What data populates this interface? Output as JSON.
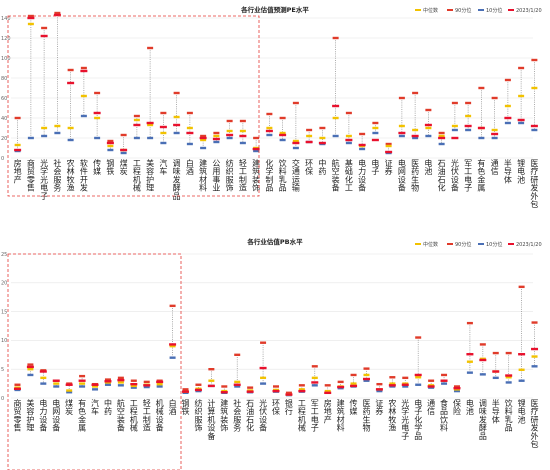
{
  "legend": {
    "median": "中位数",
    "p90": "90分位",
    "p10": "10分位",
    "current": "2023/1/20"
  },
  "colors": {
    "median": "#f2c200",
    "p90": "#e03b2a",
    "p10": "#4a6fb5",
    "current": "#e8112d",
    "range": "#8a8a8a",
    "highlight_box": "#e53935"
  },
  "chart_data": [
    {
      "type": "range",
      "title": "各行业估值预测PE水平",
      "ylim": [
        0,
        140
      ],
      "yticks": [
        0,
        20,
        40,
        60,
        80,
        100,
        120,
        140
      ],
      "grid": true,
      "legend_position": "top-right",
      "categories": [
        "房地产",
        "商贸零售",
        "光学光电子",
        "社会服务",
        "农林牧渔",
        "软件开发",
        "传媒",
        "钢铁",
        "煤炭",
        "工程机械",
        "美容护理",
        "汽车",
        "调味发酵品",
        "白酒",
        "建筑材料",
        "公用事业",
        "纺织服饰",
        "轻工制造",
        "建筑装饰",
        "化学制品",
        "饮料乳品",
        "交通运输",
        "环保",
        "中药",
        "航空装备",
        "基础化工",
        "电力设备",
        "电子",
        "证券",
        "电网设备",
        "医药生物",
        "电池",
        "石油石化",
        "光伏设备",
        "军工电子",
        "有色金属",
        "通信",
        "半导体",
        "锂电池",
        "医疗研发外包"
      ],
      "series": [
        {
          "name": "中位数",
          "values": [
            13,
            134,
            30,
            32,
            30,
            62,
            40,
            12,
            8,
            38,
            33,
            25,
            41,
            30,
            18,
            22,
            27,
            27,
            10,
            30,
            25,
            17,
            22,
            20,
            40,
            22,
            12,
            30,
            12,
            32,
            28,
            30,
            22,
            32,
            42,
            30,
            28,
            52,
            62,
            70
          ]
        },
        {
          "name": "90分位",
          "values": [
            40,
            142,
            130,
            145,
            88,
            90,
            65,
            17,
            23,
            42,
            110,
            45,
            65,
            45,
            22,
            25,
            37,
            37,
            20,
            44,
            40,
            55,
            28,
            30,
            120,
            45,
            24,
            35,
            14,
            60,
            65,
            48,
            25,
            55,
            55,
            70,
            60,
            78,
            90,
            98
          ]
        },
        {
          "name": "10分位",
          "values": [
            7,
            20,
            22,
            25,
            18,
            42,
            20,
            8,
            5,
            20,
            20,
            15,
            25,
            14,
            10,
            16,
            20,
            15,
            7,
            23,
            18,
            10,
            16,
            14,
            22,
            15,
            9,
            25,
            5,
            22,
            20,
            22,
            14,
            28,
            28,
            20,
            20,
            35,
            35,
            28
          ]
        },
        {
          "name": "2023/1/20",
          "values": [
            8,
            140,
            122,
            143,
            75,
            87,
            45,
            15,
            8,
            33,
            35,
            31,
            33,
            25,
            20,
            19,
            23,
            22,
            9,
            27,
            23,
            15,
            16,
            15,
            52,
            18,
            13,
            18,
            6,
            25,
            22,
            33,
            20,
            20,
            32,
            30,
            24,
            40,
            38,
            32
          ]
        }
      ]
    },
    {
      "type": "range",
      "title": "各行业估值PB水平",
      "ylim": [
        0,
        25
      ],
      "yticks": [
        0,
        5,
        10,
        15,
        20,
        25
      ],
      "grid": true,
      "legend_position": "top-right",
      "categories": [
        "商贸零售",
        "美容护理",
        "电力设备",
        "电网设备",
        "煤炭",
        "有色金属",
        "汽车",
        "中药",
        "航空装备",
        "工程机械",
        "轻工制造",
        "机械设备",
        "白酒",
        "钢铁",
        "纺织服饰",
        "计算机设备",
        "建筑装饰",
        "社会服务",
        "石油石化",
        "光伏设备",
        "环保",
        "银行",
        "工程机械",
        "军工电子",
        "房地产",
        "建筑材料",
        "传媒",
        "医药生物",
        "证券",
        "农林牧渔",
        "光学光电子",
        "电子化学品",
        "通信",
        "食品饮料",
        "保险",
        "电池",
        "调味发酵品",
        "半导体",
        "饮料乳品",
        "锂电池",
        "医疗研发外包"
      ],
      "series": [
        {
          "name": "中位数",
          "values": [
            1.8,
            5,
            3.5,
            2.5,
            1.3,
            2.5,
            2,
            2.7,
            2.7,
            2.1,
            2.3,
            2.4,
            9,
            1.1,
            1.6,
            3,
            1.2,
            2.8,
            1.3,
            3.5,
            1.4,
            0.6,
            1.5,
            3.5,
            1.2,
            2,
            2.5,
            4,
            1.5,
            2.5,
            2.5,
            3.6,
            2.2,
            3,
            1.5,
            6.3,
            6.8,
            4.6,
            3.6,
            4.9,
            7.2
          ]
        },
        {
          "name": "90分位",
          "values": [
            2.3,
            5.8,
            4.8,
            3,
            2.5,
            3.8,
            2.4,
            3.2,
            3.5,
            3,
            2.8,
            3,
            16,
            1.5,
            2.3,
            5,
            2,
            7.5,
            1.8,
            9.6,
            2,
            0.9,
            2.2,
            5.5,
            2.2,
            2.8,
            4,
            5.1,
            2.4,
            3.6,
            3.5,
            10.5,
            3,
            4,
            2,
            13,
            9.3,
            7.8,
            7.8,
            19.3,
            13.1
          ]
        },
        {
          "name": "10分位",
          "values": [
            1.4,
            4,
            2.5,
            2,
            1,
            2,
            1.5,
            2.3,
            2.2,
            1.8,
            1.9,
            2,
            7,
            0.9,
            1.2,
            2.1,
            0.9,
            2,
            1,
            2.5,
            1.1,
            0.5,
            1.1,
            2.2,
            0.9,
            1.7,
            2,
            3,
            1.2,
            2,
            2,
            2.3,
            1.8,
            2.5,
            1.2,
            4.4,
            4.1,
            3.5,
            2.7,
            3,
            5.5
          ]
        },
        {
          "name": "2023/1/20",
          "values": [
            1.6,
            5.4,
            4.6,
            3,
            2.3,
            3,
            2.3,
            2.9,
            3.1,
            2.4,
            2.2,
            2.8,
            9.3,
            1.1,
            1.4,
            2.1,
            1,
            2.3,
            1.1,
            5.2,
            1.2,
            0.6,
            1.2,
            2.7,
            0.9,
            1.9,
            2.1,
            3.3,
            1.5,
            2.2,
            2.3,
            4,
            2,
            3,
            1.7,
            7.6,
            6.6,
            4.6,
            3.9,
            7.6,
            8.5
          ]
        }
      ]
    }
  ]
}
